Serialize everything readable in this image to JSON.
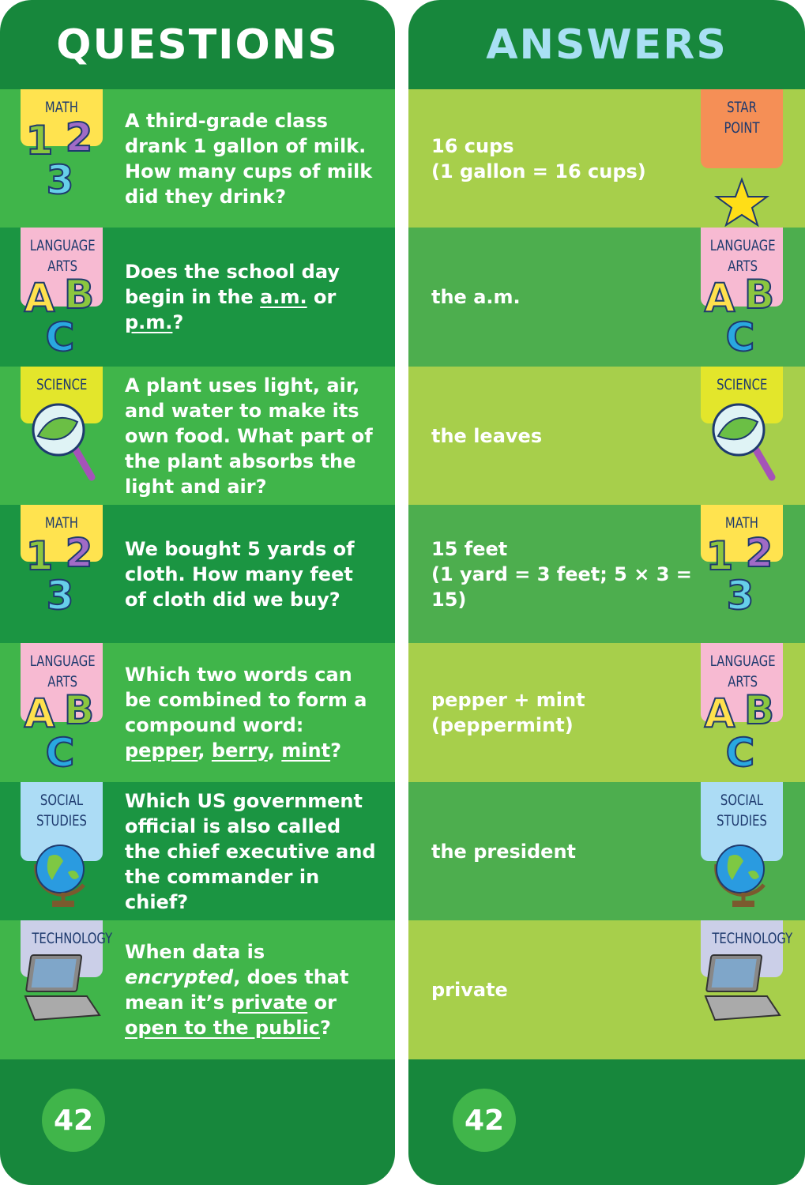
{
  "questions_card": {
    "title": "QUESTIONS",
    "page": "42",
    "rows": [
      {
        "tag": "MATH",
        "icon": [
          "1",
          "2",
          "3"
        ],
        "text": [
          {
            "text": "A third-grade class drank 1 gallon of milk. How many cups of milk did they drink?"
          }
        ]
      },
      {
        "tag": "LANGUAGE ARTS",
        "icon": [
          "A",
          "B",
          "C"
        ],
        "text": [
          {
            "text": "Does the school day begin in the "
          },
          {
            "text": "a.m.",
            "style": "underline"
          },
          {
            "text": " or "
          },
          {
            "text": "p.m.",
            "style": "underline"
          },
          {
            "text": "?"
          }
        ]
      },
      {
        "tag": "SCIENCE",
        "text": [
          {
            "text": "A plant uses light, air, and water to make its own food. What part of the plant absorbs the light and air?"
          }
        ]
      },
      {
        "tag": "MATH",
        "icon": [
          "1",
          "2",
          "3"
        ],
        "text": [
          {
            "text": "We bought 5 yards of cloth. How many feet of cloth did we buy?"
          }
        ]
      },
      {
        "tag": "LANGUAGE ARTS",
        "icon": [
          "A",
          "B",
          "C"
        ],
        "text": [
          {
            "text": "Which two words can be combined to form a compound word: "
          },
          {
            "text": "pepper",
            "style": "underline"
          },
          {
            "text": ", "
          },
          {
            "text": "berry",
            "style": "underline"
          },
          {
            "text": ", "
          },
          {
            "text": "mint",
            "style": "underline"
          },
          {
            "text": "?"
          }
        ]
      },
      {
        "tag": "SOCIAL STUDIES",
        "text": [
          {
            "text": "Which US government official is also called the chief executive and the commander in chief?"
          }
        ]
      },
      {
        "tag": "TECHNOLOGY",
        "text": [
          {
            "text": "When data is "
          },
          {
            "text": "encrypted",
            "style": "italic"
          },
          {
            "text": ", does that mean it’s "
          },
          {
            "text": "private",
            "style": "underline"
          },
          {
            "text": " or "
          },
          {
            "text": "open to the public",
            "style": "underline"
          },
          {
            "text": "?"
          }
        ]
      }
    ]
  },
  "answers_card": {
    "title": "ANSWERS",
    "page": "42",
    "rows": [
      {
        "tag": "STAR POINT",
        "lines": [
          "16 cups",
          "(1 gallon = 16 cups)"
        ]
      },
      {
        "tag": "LANGUAGE ARTS",
        "icon": [
          "A",
          "B",
          "C"
        ],
        "lines": [
          "the a.m."
        ]
      },
      {
        "tag": "SCIENCE",
        "lines": [
          "the leaves"
        ]
      },
      {
        "tag": "MATH",
        "icon": [
          "1",
          "2",
          "3"
        ],
        "lines": [
          "15 feet",
          "(1 yard = 3 feet; 5 × 3 = 15)"
        ]
      },
      {
        "tag": "LANGUAGE ARTS",
        "icon": [
          "A",
          "B",
          "C"
        ],
        "lines": [
          "pepper + mint",
          "(peppermint)"
        ]
      },
      {
        "tag": "SOCIAL STUDIES",
        "lines": [
          "the president"
        ]
      },
      {
        "tag": "TECHNOLOGY",
        "lines": [
          "private"
        ]
      }
    ]
  }
}
